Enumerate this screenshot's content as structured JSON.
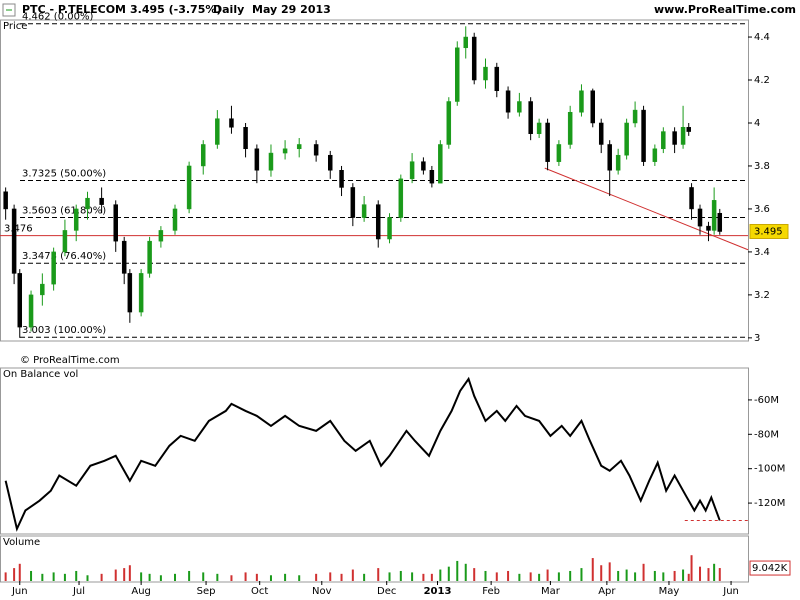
{
  "header": {
    "symbol": "PTC - P.TELECOM",
    "quote": "3.495 (-3.75%)",
    "period": "Daily",
    "date": "May 29 2013",
    "site": "www.ProRealTime.com"
  },
  "chart_data": [
    {
      "type": "candlestick",
      "title": "Price",
      "watermark": "© ProRealTime.com",
      "x": [
        2,
        5,
        7,
        11,
        15,
        19,
        23,
        27,
        31,
        36,
        41,
        44,
        46,
        50,
        53,
        57,
        62,
        67,
        72,
        77,
        82,
        87,
        91,
        96,
        101,
        106,
        112,
        117,
        121,
        125,
        129,
        134,
        138,
        142,
        146,
        150,
        153,
        156,
        159,
        162,
        165,
        168,
        172,
        176,
        180,
        184,
        188,
        191,
        194,
        198,
        202,
        206,
        210,
        213,
        216,
        219,
        222,
        225,
        228,
        232,
        235,
        239,
        242,
        244,
        245,
        248,
        251,
        253,
        255
      ],
      "open": [
        3.68,
        3.6,
        3.3,
        3.05,
        3.2,
        3.25,
        3.4,
        3.5,
        3.6,
        3.65,
        3.62,
        3.45,
        3.3,
        3.12,
        3.3,
        3.45,
        3.5,
        3.6,
        3.8,
        3.9,
        4.02,
        3.98,
        3.88,
        3.78,
        3.86,
        3.88,
        3.9,
        3.85,
        3.78,
        3.7,
        3.56,
        3.62,
        3.46,
        3.56,
        3.74,
        3.82,
        3.78,
        3.72,
        3.9,
        4.1,
        4.35,
        4.4,
        4.2,
        4.26,
        4.15,
        4.05,
        4.1,
        3.95,
        4.0,
        3.82,
        3.9,
        4.05,
        4.15,
        4.0,
        3.9,
        3.78,
        3.85,
        4.0,
        4.06,
        3.82,
        3.88,
        3.96,
        3.9,
        3.98,
        3.7,
        3.6,
        3.52,
        3.5,
        3.58
      ],
      "high": [
        3.7,
        3.62,
        3.32,
        3.22,
        3.3,
        3.42,
        3.55,
        3.62,
        3.68,
        3.7,
        3.64,
        3.47,
        3.32,
        3.32,
        3.47,
        3.52,
        3.62,
        3.82,
        3.92,
        4.06,
        4.08,
        4.0,
        3.9,
        3.9,
        3.92,
        3.93,
        3.92,
        3.87,
        3.8,
        3.72,
        3.66,
        3.64,
        3.58,
        3.76,
        3.86,
        3.84,
        3.8,
        3.92,
        4.12,
        4.38,
        4.45,
        4.42,
        4.3,
        4.28,
        4.17,
        4.14,
        4.12,
        4.02,
        4.02,
        3.92,
        4.08,
        4.18,
        4.16,
        4.02,
        3.92,
        3.88,
        4.02,
        4.1,
        4.08,
        3.9,
        3.98,
        3.98,
        4.08,
        4.0,
        3.72,
        3.62,
        3.54,
        3.7,
        3.6
      ],
      "low": [
        3.55,
        3.25,
        3.0,
        3.03,
        3.15,
        3.22,
        3.38,
        3.45,
        3.55,
        3.58,
        3.4,
        3.25,
        3.07,
        3.1,
        3.28,
        3.42,
        3.48,
        3.58,
        3.76,
        3.88,
        3.95,
        3.84,
        3.72,
        3.75,
        3.83,
        3.84,
        3.82,
        3.74,
        3.66,
        3.52,
        3.54,
        3.42,
        3.44,
        3.54,
        3.72,
        3.76,
        3.7,
        3.72,
        3.88,
        4.08,
        4.3,
        4.18,
        4.16,
        4.12,
        4.02,
        4.03,
        3.92,
        3.93,
        3.78,
        3.8,
        3.88,
        4.03,
        3.98,
        3.86,
        3.66,
        3.76,
        3.83,
        3.98,
        3.8,
        3.8,
        3.86,
        3.86,
        3.88,
        3.94,
        3.55,
        3.48,
        3.45,
        3.48,
        3.48
      ],
      "close": [
        3.6,
        3.3,
        3.05,
        3.2,
        3.25,
        3.4,
        3.5,
        3.6,
        3.65,
        3.62,
        3.45,
        3.3,
        3.12,
        3.3,
        3.45,
        3.5,
        3.6,
        3.8,
        3.9,
        4.02,
        3.98,
        3.88,
        3.78,
        3.86,
        3.88,
        3.9,
        3.85,
        3.78,
        3.7,
        3.56,
        3.62,
        3.46,
        3.56,
        3.74,
        3.82,
        3.78,
        3.72,
        3.9,
        4.1,
        4.35,
        4.4,
        4.2,
        4.26,
        4.15,
        4.05,
        4.1,
        3.95,
        4.0,
        3.82,
        3.9,
        4.05,
        4.15,
        4.0,
        3.9,
        3.78,
        3.85,
        4.0,
        4.06,
        3.82,
        3.88,
        3.96,
        3.9,
        3.98,
        3.96,
        3.6,
        3.52,
        3.5,
        3.64,
        3.495
      ],
      "up_color": "#1a9a1a",
      "down_color": "#000000",
      "xlim": [
        0,
        265
      ],
      "ylim": [
        2.99,
        4.47
      ],
      "yticks": [
        3,
        3.2,
        3.4,
        3.6,
        3.8,
        4,
        4.2,
        4.4
      ],
      "levels": [
        {
          "value": 4.462,
          "label": "4.462 (0.00%)"
        },
        {
          "value": 3.7325,
          "label": "3.7325 (50.00%)"
        },
        {
          "value": 3.5603,
          "label": "3.5603 (61.80%)"
        },
        {
          "value": 3.3473,
          "label": "3.3473 (76.40%)"
        },
        {
          "value": 3.003,
          "label": "3.003 (100.00%)"
        }
      ],
      "support": 3.476,
      "line_color": "#d03030",
      "trendline": {
        "x": [
          193,
          265
        ],
        "y": [
          3.79,
          3.41
        ]
      }
    },
    {
      "type": "line",
      "title": "On Balance vol",
      "color": "#000000",
      "x": [
        2,
        6,
        9,
        14,
        18,
        21,
        27,
        32,
        37,
        41,
        44,
        46,
        50,
        55,
        60,
        64,
        69,
        74,
        80,
        82,
        87,
        91,
        96,
        101,
        106,
        112,
        117,
        122,
        126,
        131,
        135,
        138,
        144,
        147,
        152,
        156,
        160,
        163,
        166,
        168,
        172,
        176,
        179,
        183,
        186,
        191,
        195,
        199,
        202,
        206,
        209,
        213,
        216,
        220,
        223,
        227,
        230,
        233,
        236,
        239,
        243,
        246,
        248,
        250,
        252,
        255
      ],
      "values": [
        -107,
        -135,
        -124.3,
        -118.6,
        -112.8,
        -104,
        -109.9,
        -98.3,
        -95.4,
        -92.5,
        -101.2,
        -107,
        -95.4,
        -98.3,
        -86.7,
        -80.9,
        -83.8,
        -72.2,
        -66.4,
        -62.3,
        -66.4,
        -69.3,
        -75.1,
        -69.3,
        -75.1,
        -78,
        -72.2,
        -83.8,
        -89.6,
        -83.8,
        -98.3,
        -92.5,
        -78,
        -83.8,
        -92.5,
        -78,
        -66.4,
        -54.8,
        -47.8,
        -57.7,
        -72.2,
        -66.4,
        -72.2,
        -63.5,
        -69.3,
        -72.2,
        -80.9,
        -75.1,
        -80.9,
        -72.2,
        -83.8,
        -98.3,
        -101.2,
        -95.4,
        -104,
        -118.6,
        -107,
        -96.5,
        -112.8,
        -104,
        -115.7,
        -124.3,
        -118.6,
        -124.3,
        -116.8,
        -130.1
      ],
      "xlim": [
        0,
        265
      ],
      "ylim": [
        -137.4,
        -42.6
      ],
      "yticks": [
        {
          "value": -60,
          "label": "-60M"
        },
        {
          "value": -80,
          "label": "-80M"
        },
        {
          "value": -100,
          "label": "-100M"
        },
        {
          "value": -120,
          "label": "-120M"
        }
      ]
    },
    {
      "type": "bar",
      "title": "Volume",
      "up_color": "#1a9a1a",
      "down_color": "#d03030",
      "x": [
        2,
        5,
        7,
        11,
        15,
        19,
        23,
        27,
        31,
        36,
        41,
        44,
        46,
        50,
        53,
        57,
        62,
        67,
        72,
        77,
        82,
        87,
        91,
        96,
        101,
        106,
        112,
        117,
        121,
        125,
        129,
        134,
        138,
        142,
        146,
        150,
        153,
        156,
        159,
        162,
        165,
        168,
        172,
        176,
        180,
        184,
        188,
        191,
        194,
        198,
        202,
        206,
        210,
        213,
        216,
        219,
        222,
        225,
        228,
        232,
        235,
        239,
        242,
        244,
        245,
        248,
        251,
        253,
        255
      ],
      "values": [
        6000,
        9000,
        12000,
        7000,
        5000,
        6000,
        5000,
        7000,
        4000,
        5000,
        8000,
        9000,
        11000,
        6000,
        5000,
        4000,
        5000,
        7000,
        6000,
        5000,
        4000,
        6000,
        5000,
        4000,
        5000,
        4000,
        5000,
        6000,
        5000,
        8000,
        5000,
        9000,
        6000,
        7000,
        6000,
        5000,
        5000,
        8000,
        10000,
        14000,
        12000,
        9000,
        7000,
        6000,
        7000,
        5000,
        6000,
        5000,
        8000,
        6000,
        7000,
        9000,
        16000,
        11000,
        13000,
        7000,
        8000,
        6000,
        12000,
        7000,
        6000,
        7000,
        8000,
        5000,
        18000,
        10000,
        9000,
        12000,
        9042
      ],
      "value_labels": [
        null,
        null,
        null,
        null,
        null,
        null,
        null,
        null,
        null,
        null,
        null,
        null,
        null,
        null,
        null,
        null,
        null,
        null,
        null,
        null,
        null,
        null,
        null,
        null,
        null,
        null,
        null,
        null,
        null,
        null,
        null,
        null,
        null,
        null,
        null,
        null,
        null,
        null,
        null,
        null,
        null,
        null,
        null,
        null,
        null,
        null,
        null,
        null,
        null,
        null,
        null,
        null,
        null,
        null,
        null,
        null,
        null,
        null,
        null,
        null,
        null,
        null,
        null,
        null,
        null,
        null,
        null,
        null,
        "9.042K"
      ],
      "xlim": [
        0,
        265
      ],
      "ylim": [
        0,
        30000
      ],
      "xticks": [
        {
          "value": 7,
          "label": "Jun"
        },
        {
          "value": 28,
          "label": "Jul"
        },
        {
          "value": 50,
          "label": "Aug"
        },
        {
          "value": 73,
          "label": "Sep"
        },
        {
          "value": 92,
          "label": "Oct"
        },
        {
          "value": 114,
          "label": "Nov"
        },
        {
          "value": 137,
          "label": "Dec"
        },
        {
          "value": 155,
          "label": "2013"
        },
        {
          "value": 174,
          "label": "Feb"
        },
        {
          "value": 195,
          "label": "Mar"
        },
        {
          "value": 215,
          "label": "Apr"
        },
        {
          "value": 237,
          "label": "May"
        },
        {
          "value": 259,
          "label": "Jun"
        }
      ]
    }
  ]
}
